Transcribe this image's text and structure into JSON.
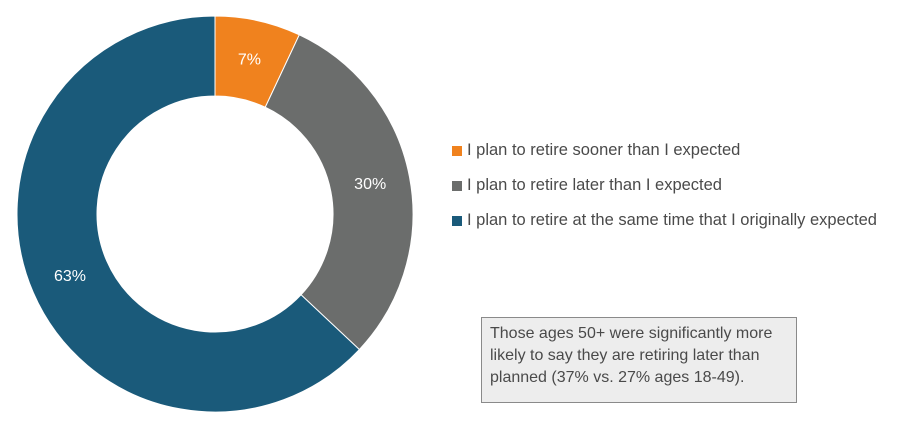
{
  "chart_data": {
    "type": "pie",
    "categories": [
      "I plan to retire sooner than I expected",
      "I plan to retire later than I expected",
      "I plan to retire at the same time that I originally expected"
    ],
    "values": [
      7,
      30,
      63
    ],
    "value_labels": [
      "7%",
      "30%",
      "63%"
    ],
    "colors": [
      "#f0821e",
      "#6b6d6c",
      "#1a5a7a"
    ],
    "donut": true,
    "legend_position": "right"
  },
  "legend": {
    "items": [
      {
        "label": "I plan to retire sooner than I expected",
        "color": "#f0821e"
      },
      {
        "label": "I plan to retire later than I expected",
        "color": "#6b6d6c"
      },
      {
        "label": "I plan to retire at the same time that I originally expected",
        "color": "#1a5a7a"
      }
    ]
  },
  "note": {
    "text": "Those ages 50+ were significantly more likely to say they are retiring later than planned (37% vs. 27% ages 18-49)."
  }
}
